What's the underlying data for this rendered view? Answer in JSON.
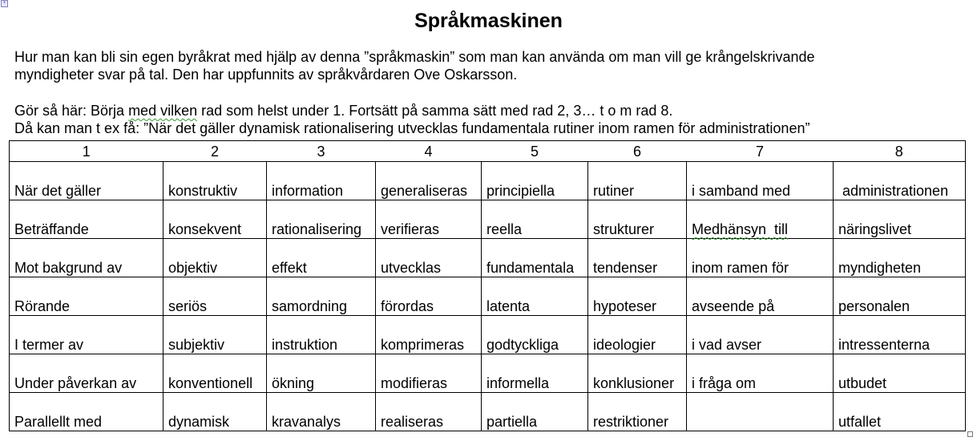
{
  "title": "Språkmaskinen",
  "intro": {
    "line1": "Hur man kan bli sin egen byråkrat med hjälp av denna ”språkmaskin” som man kan använda om man vill ge krångelskrivande",
    "line2": "myndigheter svar på tal. Den har uppfunnits av språkvårdaren Ove Oskarsson."
  },
  "instructions": {
    "line1_pre": "Gör så här: Börja ",
    "line1_flag": "med  vilken",
    "line1_post": " rad som helst under 1. Fortsätt på samma sätt med rad 2, 3… t o m rad 8.",
    "line2": "Då kan man t ex få: ”När det gäller dynamisk rationalisering utvecklas fundamentala rutiner inom ramen för administrationen”"
  },
  "table": {
    "headers": [
      "1",
      "2",
      "3",
      "4",
      "5",
      "6",
      "7",
      "8"
    ],
    "rows": [
      [
        "När det gäller",
        "konstruktiv",
        "information",
        "generaliseras",
        "principiella",
        "rutiner",
        "i samband med",
        " administrationen"
      ],
      [
        "Beträffande",
        "konsekvent",
        "rationalisering",
        "verifieras",
        "reella",
        "strukturer",
        "Medhänsyn  till",
        "näringslivet"
      ],
      [
        "Mot bakgrund av",
        "objektiv",
        "effekt",
        "utvecklas",
        "fundamentala",
        "tendenser",
        "inom ramen för",
        "myndigheten"
      ],
      [
        "Rörande",
        "seriös",
        "samordning",
        "förordas",
        "latenta",
        "hypoteser",
        "avseende på",
        "personalen"
      ],
      [
        "I termer av",
        "subjektiv",
        "instruktion",
        "komprimeras",
        "godtyckliga",
        "ideologier",
        "i vad avser",
        "intressenterna"
      ],
      [
        "Under påverkan av",
        "konventionell",
        "ökning",
        "modifieras",
        "informella",
        "konklusioner",
        "i fråga om",
        "utbudet"
      ],
      [
        "Parallellt med",
        "dynamisk",
        "kravanalys",
        "realiseras",
        "partiella",
        "restriktioner",
        "",
        "utfallet"
      ]
    ]
  }
}
